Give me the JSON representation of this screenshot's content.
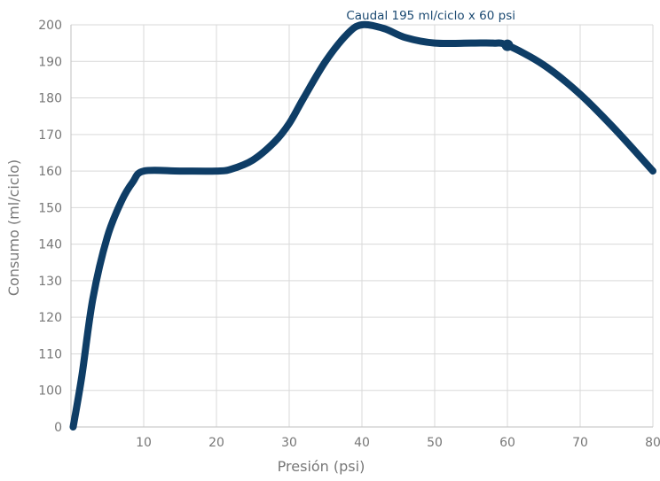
{
  "chart_data": {
    "type": "line",
    "title": "",
    "xlabel": "Presión (psi)",
    "ylabel": "Consumo (ml/ciclo)",
    "xlim": [
      0,
      80
    ],
    "x_ticks": [
      10,
      20,
      30,
      40,
      50,
      60,
      70,
      80
    ],
    "y_ticks": [
      0,
      100,
      110,
      120,
      130,
      140,
      150,
      160,
      170,
      180,
      190,
      200
    ],
    "y_axis_break": "0 then 100 to 200",
    "grid": true,
    "legend": "none",
    "line_color": "#0e3d66",
    "series": [
      {
        "points": [
          [
            0.3,
            0
          ],
          [
            1.5,
            104
          ],
          [
            3,
            125
          ],
          [
            5,
            142
          ],
          [
            7,
            152
          ],
          [
            8.5,
            157
          ],
          [
            10,
            160
          ],
          [
            15,
            160
          ],
          [
            20,
            160
          ],
          [
            22,
            160.5
          ],
          [
            25,
            163
          ],
          [
            28,
            168
          ],
          [
            30,
            173
          ],
          [
            32,
            180
          ],
          [
            35,
            190
          ],
          [
            38,
            197.5
          ],
          [
            40,
            200
          ],
          [
            43,
            199
          ],
          [
            46,
            196.5
          ],
          [
            50,
            195
          ],
          [
            55,
            195
          ],
          [
            58,
            195
          ],
          [
            60,
            194.4
          ],
          [
            65,
            189
          ],
          [
            70,
            181
          ],
          [
            75,
            171
          ],
          [
            80,
            160
          ]
        ]
      }
    ],
    "annotation": {
      "text": "Caudal 195 ml/ciclo x 60 psi",
      "x": 60,
      "y": 194.4
    }
  }
}
